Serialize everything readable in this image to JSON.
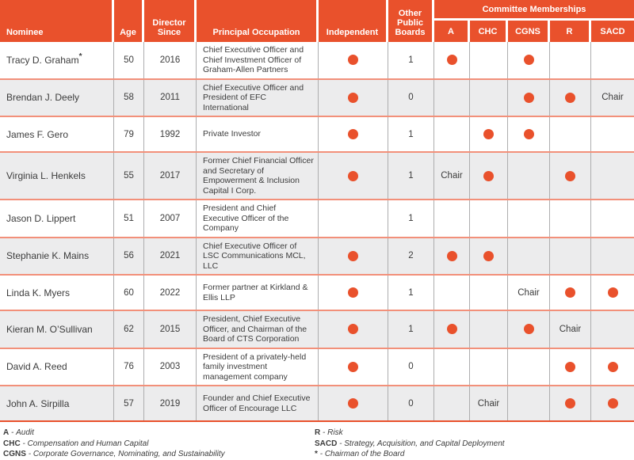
{
  "colors": {
    "accent": "#E9512C",
    "alt_row": "#ECECED",
    "row_separator": "#F2907A",
    "grid_line": "#ADADAE"
  },
  "table": {
    "headers": {
      "nominee": "Nominee",
      "age": "Age",
      "director_since": "Director Since",
      "principal_occupation": "Principal Occupation",
      "independent": "Independent",
      "other_public_boards": "Other Public Boards",
      "committee_memberships": "Committee Memberships",
      "committee_columns": {
        "a": "A",
        "chc": "CHC",
        "cgns": "CGNS",
        "r": "R",
        "sacd": "SACD"
      }
    },
    "rows": [
      {
        "name": "Tracy D. Graham",
        "sup": "*",
        "age": "50",
        "since": "2016",
        "occupation": "Chief Executive Officer and Chief Investment Officer of Graham-Allen Partners",
        "independent": "dot",
        "other_boards": "1",
        "committees": {
          "a": "dot",
          "chc": "",
          "cgns": "dot",
          "r": "",
          "sacd": ""
        }
      },
      {
        "name": "Brendan J. Deely",
        "sup": "",
        "age": "58",
        "since": "2011",
        "occupation": "Chief Executive Officer and President of EFC International",
        "independent": "dot",
        "other_boards": "0",
        "committees": {
          "a": "",
          "chc": "",
          "cgns": "dot",
          "r": "dot",
          "sacd": "Chair"
        }
      },
      {
        "name": "James F. Gero",
        "sup": "",
        "age": "79",
        "since": "1992",
        "occupation": "Private Investor",
        "independent": "dot",
        "other_boards": "1",
        "committees": {
          "a": "",
          "chc": "dot",
          "cgns": "dot",
          "r": "",
          "sacd": ""
        }
      },
      {
        "name": "Virginia L. Henkels",
        "sup": "",
        "age": "55",
        "since": "2017",
        "occupation": "Former Chief Financial Officer and Secretary of Empowerment & Inclusion Capital I Corp.",
        "independent": "dot",
        "other_boards": "1",
        "committees": {
          "a": "Chair",
          "chc": "dot",
          "cgns": "",
          "r": "dot",
          "sacd": ""
        }
      },
      {
        "name": "Jason D. Lippert",
        "sup": "",
        "age": "51",
        "since": "2007",
        "occupation": "President and Chief Executive Officer of the Company",
        "independent": "",
        "other_boards": "1",
        "committees": {
          "a": "",
          "chc": "",
          "cgns": "",
          "r": "",
          "sacd": ""
        }
      },
      {
        "name": "Stephanie K. Mains",
        "sup": "",
        "age": "56",
        "since": "2021",
        "occupation": "Chief Executive Officer of LSC Communications MCL, LLC",
        "independent": "dot",
        "other_boards": "2",
        "committees": {
          "a": "dot",
          "chc": "dot",
          "cgns": "",
          "r": "",
          "sacd": ""
        }
      },
      {
        "name": "Linda K. Myers",
        "sup": "",
        "age": "60",
        "since": "2022",
        "occupation": "Former partner at Kirkland & Ellis LLP",
        "independent": "dot",
        "other_boards": "1",
        "committees": {
          "a": "",
          "chc": "",
          "cgns": "Chair",
          "r": "dot",
          "sacd": "dot"
        }
      },
      {
        "name": "Kieran M. O’Sullivan",
        "sup": "",
        "age": "62",
        "since": "2015",
        "occupation": "President, Chief Executive Officer, and Chairman of the Board of CTS Corporation",
        "independent": "dot",
        "other_boards": "1",
        "committees": {
          "a": "dot",
          "chc": "",
          "cgns": "dot",
          "r": "Chair",
          "sacd": ""
        }
      },
      {
        "name": "David A. Reed",
        "sup": "",
        "age": "76",
        "since": "2003",
        "occupation": "President of a privately-held family investment management company",
        "independent": "dot",
        "other_boards": "0",
        "committees": {
          "a": "",
          "chc": "",
          "cgns": "",
          "r": "dot",
          "sacd": "dot"
        }
      },
      {
        "name": "John A. Sirpilla",
        "sup": "",
        "age": "57",
        "since": "2019",
        "occupation": "Founder and Chief Executive Officer of Encourage LLC",
        "independent": "dot",
        "other_boards": "0",
        "committees": {
          "a": "",
          "chc": "Chair",
          "cgns": "",
          "r": "dot",
          "sacd": "dot"
        }
      }
    ]
  },
  "legend": {
    "separator": "-",
    "left": [
      {
        "tag": "A",
        "desc": "Audit"
      },
      {
        "tag": "CHC",
        "desc": "Compensation and Human Capital"
      },
      {
        "tag": "CGNS",
        "desc": "Corporate Governance, Nominating, and Sustainability"
      }
    ],
    "right": [
      {
        "tag": "R",
        "desc": "Risk"
      },
      {
        "tag": "SACD",
        "desc": "Strategy, Acquisition, and Capital Deployment"
      },
      {
        "tag": "*",
        "desc": "Chairman of the Board"
      }
    ]
  }
}
